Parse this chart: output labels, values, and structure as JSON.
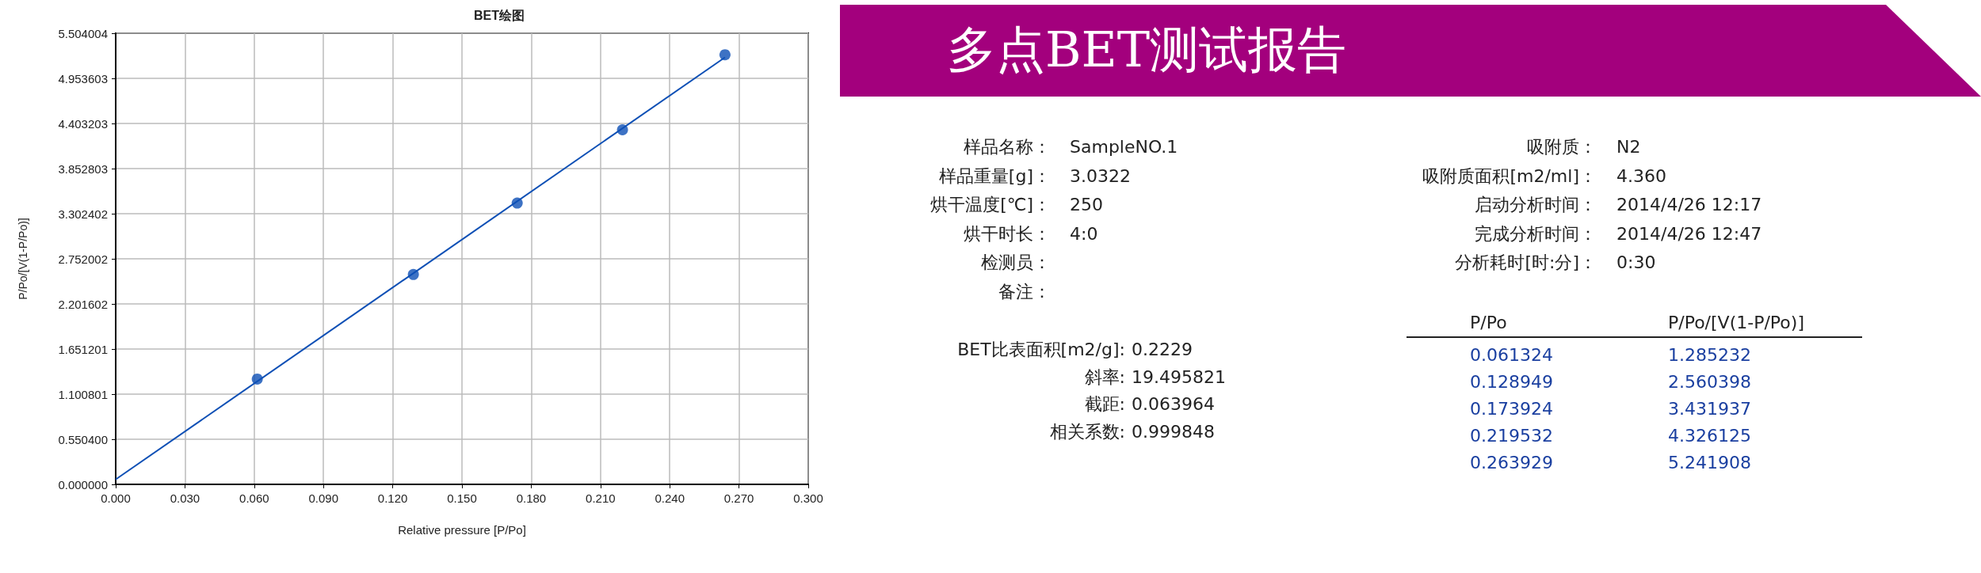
{
  "chart_data": [
    {
      "type": "scatter",
      "title": "BET绘图",
      "xlabel": "Relative pressure [P/Po]",
      "ylabel": "P/Po/[V(1-P/Po)]",
      "xlim": [
        0,
        0.3
      ],
      "xticks": [
        {
          "value": 0,
          "label": "0.000"
        },
        {
          "value": 0.03,
          "label": "0.030"
        },
        {
          "value": 0.06,
          "label": "0.060"
        },
        {
          "value": 0.09,
          "label": "0.090"
        },
        {
          "value": 0.12,
          "label": "0.120"
        },
        {
          "value": 0.15,
          "label": "0.150"
        },
        {
          "value": 0.18,
          "label": "0.180"
        },
        {
          "value": 0.21,
          "label": "0.210"
        },
        {
          "value": 0.24,
          "label": "0.240"
        },
        {
          "value": 0.27,
          "label": "0.270"
        },
        {
          "value": 0.3,
          "label": "0.300"
        }
      ],
      "ylim": [
        0,
        5.504004
      ],
      "yticks": [
        {
          "value": 0,
          "label": "0.000000"
        },
        {
          "value": 0.5504,
          "label": "0.550400"
        },
        {
          "value": 1.100801,
          "label": "1.100801"
        },
        {
          "value": 1.651201,
          "label": "1.651201"
        },
        {
          "value": 2.201602,
          "label": "2.201602"
        },
        {
          "value": 2.752002,
          "label": "2.752002"
        },
        {
          "value": 3.302402,
          "label": "3.302402"
        },
        {
          "value": 3.852803,
          "label": "3.852803"
        },
        {
          "value": 4.403203,
          "label": "4.403203"
        },
        {
          "value": 4.953603,
          "label": "4.953603"
        },
        {
          "value": 5.504004,
          "label": "5.504004"
        }
      ],
      "grid": true,
      "marker": "circle",
      "series": [
        {
          "type": "line",
          "marker": "none",
          "color": "#0d4fb5",
          "x": [
            0,
            0.263929
          ],
          "values": [
            0.06,
            5.21
          ]
        },
        {
          "type": "scatter",
          "color": "#0d4fb5",
          "x": [
            0.061324,
            0.128949,
            0.173924,
            0.219532,
            0.263929
          ],
          "values": [
            1.285232,
            2.560398,
            3.431937,
            4.326125,
            5.241908
          ]
        }
      ]
    },
    {
      "type": "other",
      "title": "多点BET测试报告",
      "annotations": [
        "样品名称：",
        "SampleNO.1",
        "样品重量[g]：",
        "3.0322",
        "烘干温度[℃]：",
        "250",
        "烘干时长：",
        "4:0",
        "检测员：",
        null,
        "备注：",
        null,
        "吸附质：",
        "N2",
        "吸附质面积[m2/ml]：",
        "4.360",
        "启动分析时间：",
        "2014/4/26 12:17",
        "完成分析时间：",
        "2014/4/26 12:47",
        "分析耗时[时:分]：",
        "0:30",
        "BET比表面积[m2/g]:",
        "0.2229",
        "斜率:",
        "19.495821",
        "截距:",
        "0.063964",
        "相关系数:",
        "0.999848",
        "P/Po",
        "P/Po/[V(1-P/Po)]",
        "0.061324",
        "1.285232",
        "0.128949",
        "2.560398",
        "0.173924",
        "3.431937",
        "0.219532",
        "4.326125",
        "0.263929",
        "5.241908"
      ]
    }
  ]
}
